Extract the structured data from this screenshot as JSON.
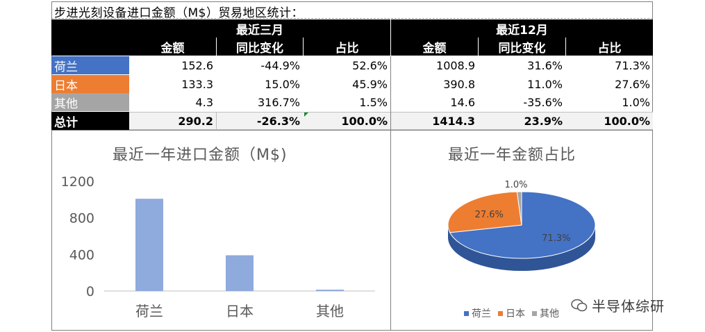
{
  "title": "步进光刻设备进口金额（M$）贸易地区统计：",
  "table": {
    "groups": [
      "最近三月",
      "最近12月"
    ],
    "columns": [
      "金额",
      "同比变化",
      "占比",
      "金额",
      "同比变化",
      "占比"
    ],
    "rows": [
      {
        "label": "荷兰",
        "color": "#4472c4",
        "values": [
          "152.6",
          "-44.9%",
          "52.6%",
          "1008.9",
          "31.6%",
          "71.3%"
        ]
      },
      {
        "label": "日本",
        "color": "#ed7d31",
        "values": [
          "133.3",
          "15.0%",
          "45.9%",
          "390.8",
          "11.0%",
          "27.6%"
        ]
      },
      {
        "label": "其他",
        "color": "#a5a5a5",
        "values": [
          "4.3",
          "316.7%",
          "1.5%",
          "14.6",
          "-35.6%",
          "1.0%"
        ]
      }
    ],
    "total": {
      "label": "总计",
      "values": [
        "290.2",
        "-26.3%",
        "100.0%",
        "1414.3",
        "23.9%",
        "100.0%"
      ]
    }
  },
  "chart_data": [
    {
      "type": "bar",
      "title": "最近一年进口金额（M$)",
      "categories": [
        "荷兰",
        "日本",
        "其他"
      ],
      "values": [
        1008.9,
        390.8,
        14.6
      ],
      "yticks": [
        "0",
        "400",
        "800",
        "1200"
      ],
      "ylim": [
        0,
        1200
      ],
      "bar_color": "#8faadc"
    },
    {
      "type": "pie",
      "title": "最近一年金额占比",
      "labels": [
        "荷兰",
        "日本",
        "其他"
      ],
      "values": [
        71.3,
        27.6,
        1.0
      ],
      "data_labels": [
        "71.3%",
        "27.6%",
        "1.0%"
      ],
      "colors": [
        "#4472c4",
        "#ed7d31",
        "#a5a5a5"
      ],
      "legend_position": "bottom"
    }
  ],
  "watermark": "半导体综研"
}
